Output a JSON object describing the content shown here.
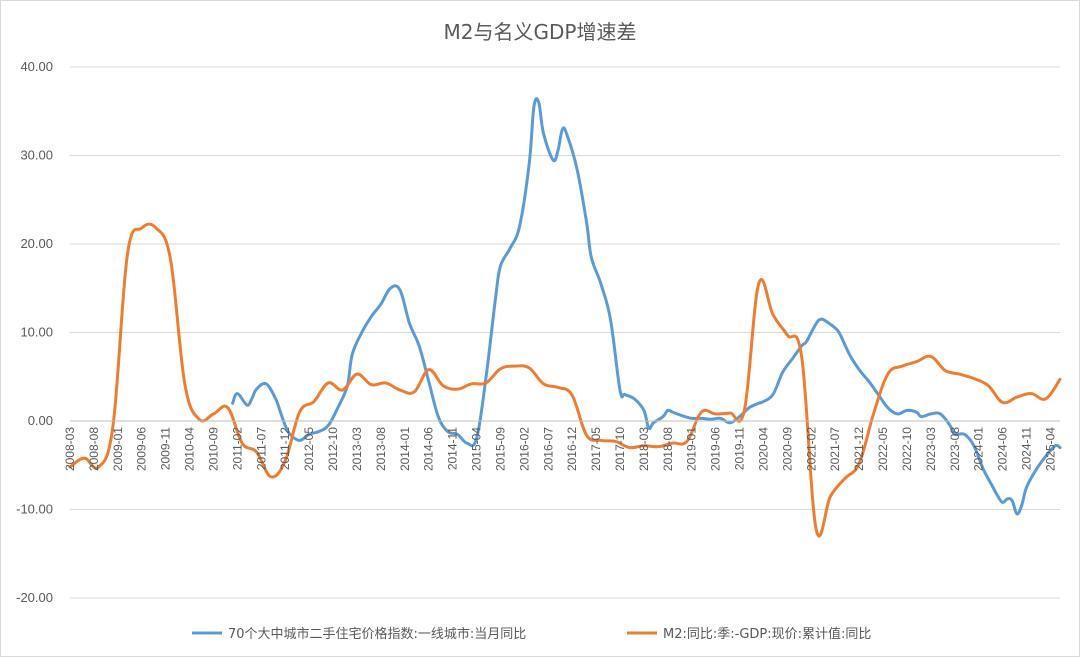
{
  "chart_data": {
    "type": "line",
    "title": "M2与名义GDP增速差",
    "xlabel": "",
    "ylabel": "",
    "ylim": [
      -20,
      40
    ],
    "yticks": [
      -20,
      -10,
      0,
      10,
      20,
      30,
      40
    ],
    "ytick_labels": [
      "-20.00",
      "-10.00",
      "0.00",
      "10.00",
      "20.00",
      "30.00",
      "40.00"
    ],
    "grid": "horizontal",
    "legend_position": "bottom",
    "x_start": "2008-03",
    "x_end": "2025-06",
    "x_tick_labels": [
      "2008-03",
      "2008-08",
      "2009-01",
      "2009-06",
      "2009-11",
      "2010-04",
      "2010-09",
      "2011-02",
      "2011-07",
      "2011-12",
      "2012-05",
      "2012-10",
      "2013-03",
      "2013-08",
      "2014-01",
      "2014-06",
      "2014-11",
      "2015-04",
      "2015-09",
      "2016-02",
      "2016-07",
      "2016-12",
      "2017-05",
      "2017-10",
      "2018-03",
      "2018-08",
      "2019-01",
      "2019-06",
      "2019-11",
      "2020-04",
      "2020-09",
      "2021-02",
      "2021-07",
      "2021-12",
      "2022-05",
      "2022-10",
      "2023-03",
      "2023-08",
      "2024-01",
      "2024-06",
      "2024-11",
      "2025-04"
    ],
    "series": [
      {
        "name": "70个大中城市二手住宅价格指数:一线城市:当月同比",
        "color": "#5b9bd5",
        "points": [
          [
            "2011-01",
            2.0
          ],
          [
            "2011-02",
            3.1
          ],
          [
            "2011-04",
            1.8
          ],
          [
            "2011-05",
            2.5
          ],
          [
            "2011-06",
            3.6
          ],
          [
            "2011-08",
            4.2
          ],
          [
            "2011-10",
            2.5
          ],
          [
            "2011-11",
            1.0
          ],
          [
            "2011-12",
            -0.5
          ],
          [
            "2012-01",
            -1.5
          ],
          [
            "2012-03",
            -2.2
          ],
          [
            "2012-05",
            -1.5
          ],
          [
            "2012-07",
            -1.2
          ],
          [
            "2012-09",
            -0.5
          ],
          [
            "2012-11",
            1.5
          ],
          [
            "2013-01",
            4.0
          ],
          [
            "2013-02",
            7.5
          ],
          [
            "2013-04",
            10.0
          ],
          [
            "2013-06",
            11.8
          ],
          [
            "2013-08",
            13.2
          ],
          [
            "2013-10",
            15.0
          ],
          [
            "2013-12",
            14.8
          ],
          [
            "2014-02",
            11.0
          ],
          [
            "2014-04",
            8.5
          ],
          [
            "2014-06",
            4.5
          ],
          [
            "2014-08",
            0.5
          ],
          [
            "2014-10",
            -1.2
          ],
          [
            "2014-12",
            -1.5
          ],
          [
            "2015-02",
            -2.5
          ],
          [
            "2015-04",
            -2.0
          ],
          [
            "2015-06",
            5.0
          ],
          [
            "2015-08",
            14.0
          ],
          [
            "2015-09",
            17.5
          ],
          [
            "2015-11",
            19.5
          ],
          [
            "2016-01",
            22.0
          ],
          [
            "2016-03",
            29.0
          ],
          [
            "2016-04",
            35.5
          ],
          [
            "2016-05",
            36.0
          ],
          [
            "2016-06",
            32.5
          ],
          [
            "2016-08",
            29.5
          ],
          [
            "2016-09",
            30.5
          ],
          [
            "2016-10",
            33.0
          ],
          [
            "2016-11",
            32.2
          ],
          [
            "2017-01",
            28.5
          ],
          [
            "2017-03",
            22.5
          ],
          [
            "2017-04",
            18.5
          ],
          [
            "2017-06",
            15.5
          ],
          [
            "2017-08",
            11.5
          ],
          [
            "2017-10",
            3.5
          ],
          [
            "2017-11",
            3.0
          ],
          [
            "2018-01",
            2.5
          ],
          [
            "2018-03",
            1.2
          ],
          [
            "2018-04",
            -0.8
          ],
          [
            "2018-05",
            -0.2
          ],
          [
            "2018-07",
            0.5
          ],
          [
            "2018-08",
            1.2
          ],
          [
            "2018-09",
            1.0
          ],
          [
            "2018-11",
            0.6
          ],
          [
            "2019-01",
            0.3
          ],
          [
            "2019-03",
            0.3
          ],
          [
            "2019-05",
            0.2
          ],
          [
            "2019-07",
            0.3
          ],
          [
            "2019-09",
            -0.2
          ],
          [
            "2019-11",
            0.5
          ],
          [
            "2020-01",
            1.5
          ],
          [
            "2020-03",
            2.0
          ],
          [
            "2020-04",
            2.2
          ],
          [
            "2020-06",
            3.0
          ],
          [
            "2020-08",
            5.5
          ],
          [
            "2020-10",
            7.0
          ],
          [
            "2020-12",
            8.5
          ],
          [
            "2021-01",
            9.0
          ],
          [
            "2021-03",
            11.0
          ],
          [
            "2021-04",
            11.5
          ],
          [
            "2021-05",
            11.3
          ],
          [
            "2021-07",
            10.5
          ],
          [
            "2021-08",
            9.8
          ],
          [
            "2021-10",
            7.5
          ],
          [
            "2021-12",
            5.8
          ],
          [
            "2022-02",
            4.5
          ],
          [
            "2022-04",
            3.0
          ],
          [
            "2022-06",
            1.5
          ],
          [
            "2022-08",
            0.8
          ],
          [
            "2022-10",
            1.2
          ],
          [
            "2022-12",
            1.0
          ],
          [
            "2023-01",
            0.5
          ],
          [
            "2023-03",
            0.8
          ],
          [
            "2023-05",
            0.8
          ],
          [
            "2023-07",
            -0.5
          ],
          [
            "2023-08",
            -1.5
          ],
          [
            "2023-10",
            -1.5
          ],
          [
            "2023-12",
            -2.8
          ],
          [
            "2024-02",
            -5.5
          ],
          [
            "2024-04",
            -7.5
          ],
          [
            "2024-05",
            -8.5
          ],
          [
            "2024-06",
            -9.2
          ],
          [
            "2024-07",
            -8.8
          ],
          [
            "2024-08",
            -9.0
          ],
          [
            "2024-09",
            -10.5
          ],
          [
            "2024-10",
            -9.5
          ],
          [
            "2024-11",
            -7.5
          ],
          [
            "2025-01",
            -5.5
          ],
          [
            "2025-03",
            -4.0
          ],
          [
            "2025-05",
            -2.8
          ],
          [
            "2025-06",
            -3.0
          ]
        ]
      },
      {
        "name": "M2:同比:季:-GDP:现价:累计值:同比",
        "color": "#ed7d31",
        "points": [
          [
            "2008-03",
            -5.2
          ],
          [
            "2008-06",
            -4.2
          ],
          [
            "2008-09",
            -5.2
          ],
          [
            "2008-12",
            -0.5
          ],
          [
            "2009-03",
            18.8
          ],
          [
            "2009-06",
            21.8
          ],
          [
            "2009-09",
            21.8
          ],
          [
            "2009-12",
            18.3
          ],
          [
            "2010-03",
            4.2
          ],
          [
            "2010-06",
            0.2
          ],
          [
            "2010-09",
            0.8
          ],
          [
            "2010-12",
            1.5
          ],
          [
            "2011-03",
            -2.5
          ],
          [
            "2011-06",
            -3.5
          ],
          [
            "2011-09",
            -6.3
          ],
          [
            "2011-12",
            -4.5
          ],
          [
            "2012-03",
            1.0
          ],
          [
            "2012-06",
            2.2
          ],
          [
            "2012-09",
            4.3
          ],
          [
            "2012-12",
            3.5
          ],
          [
            "2013-03",
            5.3
          ],
          [
            "2013-06",
            4.1
          ],
          [
            "2013-09",
            4.3
          ],
          [
            "2013-12",
            3.5
          ],
          [
            "2014-03",
            3.3
          ],
          [
            "2014-06",
            5.8
          ],
          [
            "2014-09",
            4.0
          ],
          [
            "2014-12",
            3.6
          ],
          [
            "2015-03",
            4.2
          ],
          [
            "2015-06",
            4.3
          ],
          [
            "2015-09",
            5.9
          ],
          [
            "2015-12",
            6.2
          ],
          [
            "2016-03",
            6.0
          ],
          [
            "2016-06",
            4.2
          ],
          [
            "2016-09",
            3.8
          ],
          [
            "2016-12",
            2.9
          ],
          [
            "2017-03",
            -1.6
          ],
          [
            "2017-06",
            -2.2
          ],
          [
            "2017-09",
            -2.3
          ],
          [
            "2017-12",
            -3.0
          ],
          [
            "2018-03",
            -2.8
          ],
          [
            "2018-06",
            -2.9
          ],
          [
            "2018-09",
            -2.5
          ],
          [
            "2018-12",
            -2.3
          ],
          [
            "2019-03",
            1.0
          ],
          [
            "2019-06",
            0.8
          ],
          [
            "2019-09",
            0.9
          ],
          [
            "2019-12",
            1.2
          ],
          [
            "2020-03",
            15.5
          ],
          [
            "2020-06",
            12.0
          ],
          [
            "2020-09",
            9.7
          ],
          [
            "2020-12",
            7.2
          ],
          [
            "2021-03",
            -12.2
          ],
          [
            "2021-06",
            -8.5
          ],
          [
            "2021-09",
            -6.5
          ],
          [
            "2021-12",
            -4.8
          ],
          [
            "2022-03",
            0.8
          ],
          [
            "2022-06",
            5.3
          ],
          [
            "2022-09",
            6.2
          ],
          [
            "2022-12",
            6.7
          ],
          [
            "2023-03",
            7.3
          ],
          [
            "2023-06",
            5.7
          ],
          [
            "2023-09",
            5.3
          ],
          [
            "2023-12",
            4.8
          ],
          [
            "2024-03",
            4.0
          ],
          [
            "2024-06",
            2.1
          ],
          [
            "2024-09",
            2.7
          ],
          [
            "2024-12",
            3.1
          ],
          [
            "2025-03",
            2.5
          ],
          [
            "2025-06",
            4.7
          ]
        ]
      }
    ]
  }
}
